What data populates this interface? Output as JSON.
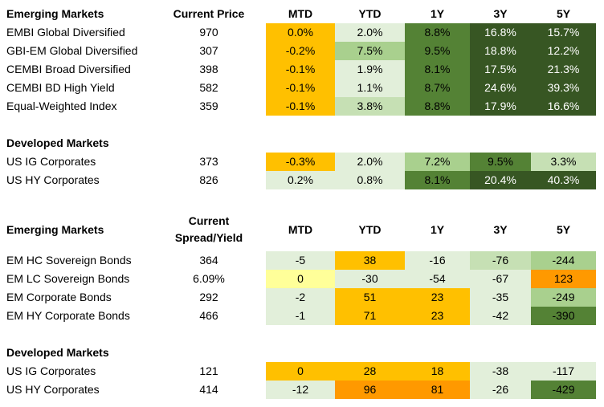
{
  "colors": {
    "dark_green": "#375623",
    "green": "#548235",
    "mid_green": "#70ad47",
    "light_green": "#a9d08e",
    "pale_green": "#c6e0b4",
    "faint_green": "#e2efda",
    "amber": "#ffc000",
    "orange": "#f4b084",
    "deep_orange": "#ff9900",
    "pale_yellow": "#ffff99"
  },
  "section1": {
    "header": {
      "name": "Emerging Markets",
      "price": "Current Price",
      "c1": "MTD",
      "c2": "YTD",
      "c3": "1Y",
      "c4": "3Y",
      "c5": "5Y"
    },
    "rows": [
      {
        "name": "EMBI Global Diversified",
        "price": "970",
        "c1": "0.0%",
        "c2": "2.0%",
        "c3": "8.8%",
        "c4": "16.8%",
        "c5": "15.7%"
      },
      {
        "name": "GBI-EM Global Diversified",
        "price": "307",
        "c1": "-0.2%",
        "c2": "7.5%",
        "c3": "9.5%",
        "c4": "18.8%",
        "c5": "12.2%"
      },
      {
        "name": "CEMBI Broad Diversified",
        "price": "398",
        "c1": "-0.1%",
        "c2": "1.9%",
        "c3": "8.1%",
        "c4": "17.5%",
        "c5": "21.3%"
      },
      {
        "name": "CEMBI BD High Yield",
        "price": "582",
        "c1": "-0.1%",
        "c2": "1.1%",
        "c3": "8.7%",
        "c4": "24.6%",
        "c5": "39.3%"
      },
      {
        "name": "Equal-Weighted Index",
        "price": "359",
        "c1": "-0.1%",
        "c2": "3.8%",
        "c3": "8.8%",
        "c4": "17.9%",
        "c5": "16.6%"
      }
    ],
    "dev_header": "Developed Markets",
    "dev_rows": [
      {
        "name": "US IG Corporates",
        "price": "373",
        "c1": "-0.3%",
        "c2": "2.0%",
        "c3": "7.2%",
        "c4": "9.5%",
        "c5": "3.3%"
      },
      {
        "name": "US HY Corporates",
        "price": "826",
        "c1": "0.2%",
        "c2": "0.8%",
        "c3": "8.1%",
        "c4": "20.4%",
        "c5": "40.3%"
      }
    ]
  },
  "section2": {
    "header": {
      "name": "Emerging Markets",
      "price_line1": "Current",
      "price_line2": "Spread/Yield",
      "c1": "MTD",
      "c2": "YTD",
      "c3": "1Y",
      "c4": "3Y",
      "c5": "5Y"
    },
    "rows": [
      {
        "name": "EM HC Sovereign Bonds",
        "price": "364",
        "c1": "-5",
        "c2": "38",
        "c3": "-16",
        "c4": "-76",
        "c5": "-244"
      },
      {
        "name": "EM LC Sovereign Bonds",
        "price": "6.09%",
        "c1": "0",
        "c2": "-30",
        "c3": "-54",
        "c4": "-67",
        "c5": "123"
      },
      {
        "name": "EM Corporate Bonds",
        "price": "292",
        "c1": "-2",
        "c2": "51",
        "c3": "23",
        "c4": "-35",
        "c5": "-249"
      },
      {
        "name": "EM HY Corporate Bonds",
        "price": "466",
        "c1": "-1",
        "c2": "71",
        "c3": "23",
        "c4": "-42",
        "c5": "-390"
      }
    ],
    "dev_header": "Developed Markets",
    "dev_rows": [
      {
        "name": "US IG Corporates",
        "price": "121",
        "c1": "0",
        "c2": "28",
        "c3": "18",
        "c4": "-38",
        "c5": "-117"
      },
      {
        "name": "US HY Corporates",
        "price": "414",
        "c1": "-12",
        "c2": "96",
        "c3": "81",
        "c4": "-26",
        "c5": "-429"
      }
    ]
  }
}
